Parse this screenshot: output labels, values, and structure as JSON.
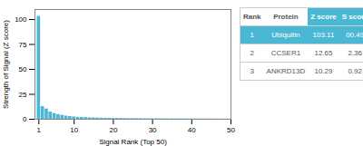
{
  "chart_data": {
    "type": "bar",
    "xlabel": "Signal Rank (Top 50)",
    "ylabel": "Strength of Signal (Z score)",
    "x": [
      1,
      2,
      3,
      4,
      5,
      6,
      7,
      8,
      9,
      10,
      11,
      12,
      13,
      14,
      15,
      16,
      17,
      18,
      19,
      20,
      21,
      22,
      23,
      24,
      25,
      26,
      27,
      28,
      29,
      30,
      31,
      32,
      33,
      34,
      35,
      36,
      37,
      38,
      39,
      40,
      41,
      42,
      43,
      44,
      45,
      46,
      47,
      48,
      49,
      50
    ],
    "values": [
      103.11,
      12.65,
      10.29,
      7.2,
      5.8,
      4.6,
      3.9,
      3.2,
      2.7,
      2.3,
      2.0,
      1.8,
      1.6,
      1.45,
      1.32,
      1.2,
      1.1,
      1.02,
      0.95,
      0.88,
      0.82,
      0.77,
      0.72,
      0.68,
      0.64,
      0.61,
      0.58,
      0.55,
      0.52,
      0.5,
      0.48,
      0.46,
      0.44,
      0.42,
      0.4,
      0.39,
      0.37,
      0.36,
      0.34,
      0.33,
      0.32,
      0.31,
      0.3,
      0.29,
      0.28,
      0.27,
      0.26,
      0.25,
      0.24,
      0.23
    ],
    "color": "#4ab8d4",
    "xlim": [
      0,
      50
    ],
    "ylim": [
      0,
      110
    ],
    "xticks": [
      1,
      10,
      20,
      30,
      40,
      50
    ],
    "yticks": [
      0,
      25,
      50,
      75,
      100
    ],
    "grid": false,
    "table": {
      "columns": [
        "Rank",
        "Protein",
        "Z score",
        "S score"
      ],
      "rows": [
        [
          "1",
          "Ubiquitin",
          "103.11",
          "00.49"
        ],
        [
          "2",
          "CCSER1",
          "12.65",
          "2.36"
        ],
        [
          "3",
          "ANKRD13D",
          "10.29",
          "0.92"
        ]
      ]
    }
  }
}
